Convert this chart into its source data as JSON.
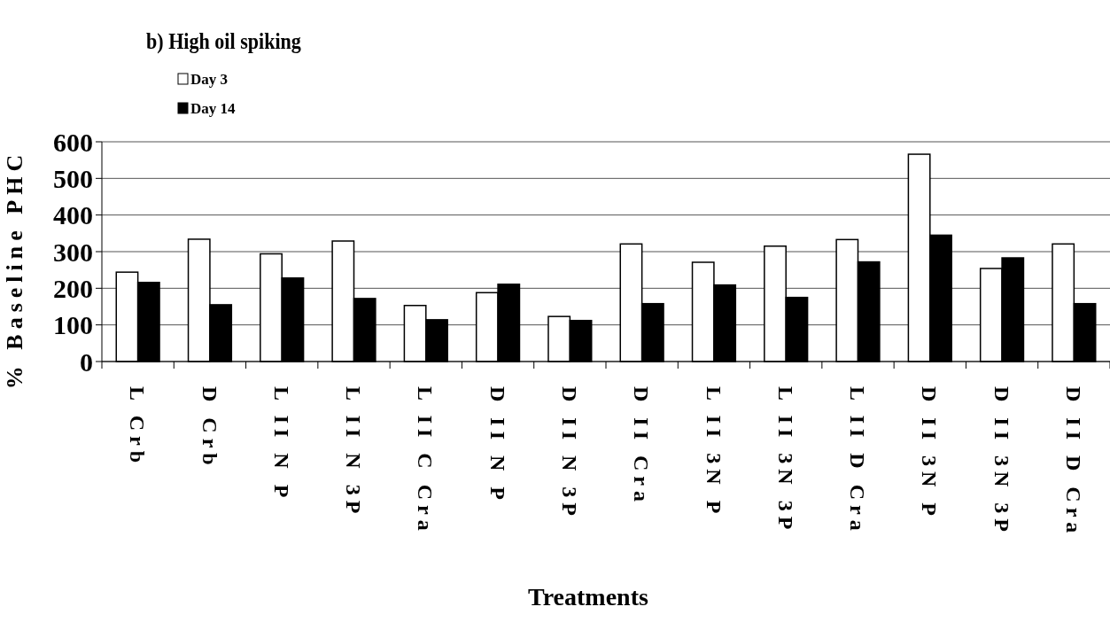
{
  "chart_data": {
    "type": "bar",
    "title": "b) High oil spiking",
    "xlabel": "Treatments",
    "ylabel": "% Baseline PHC",
    "categories": [
      "L Crb",
      "D Crb",
      "L II N P",
      "L II N 3P",
      "L II C Cra",
      "D II N P",
      "D II N 3P",
      "D II Cra",
      "L II 3N P",
      "L II 3N 3P",
      "L II D Cra",
      "D II 3N P",
      "D II 3N 3P",
      "D II D Cra"
    ],
    "series": [
      {
        "name": "Day 3",
        "color": "#ffffff",
        "values": [
          244,
          334,
          294,
          329,
          153,
          188,
          123,
          321,
          271,
          315,
          333,
          566,
          254,
          321
        ]
      },
      {
        "name": "Day 14",
        "color": "#000000",
        "values": [
          216,
          155,
          228,
          172,
          114,
          211,
          112,
          158,
          209,
          175,
          272,
          345,
          283,
          158
        ]
      }
    ],
    "ylim": [
      0,
      600
    ],
    "yticks": [
      0,
      100,
      200,
      300,
      400,
      500,
      600
    ],
    "grid": "y",
    "legend": "top left"
  }
}
